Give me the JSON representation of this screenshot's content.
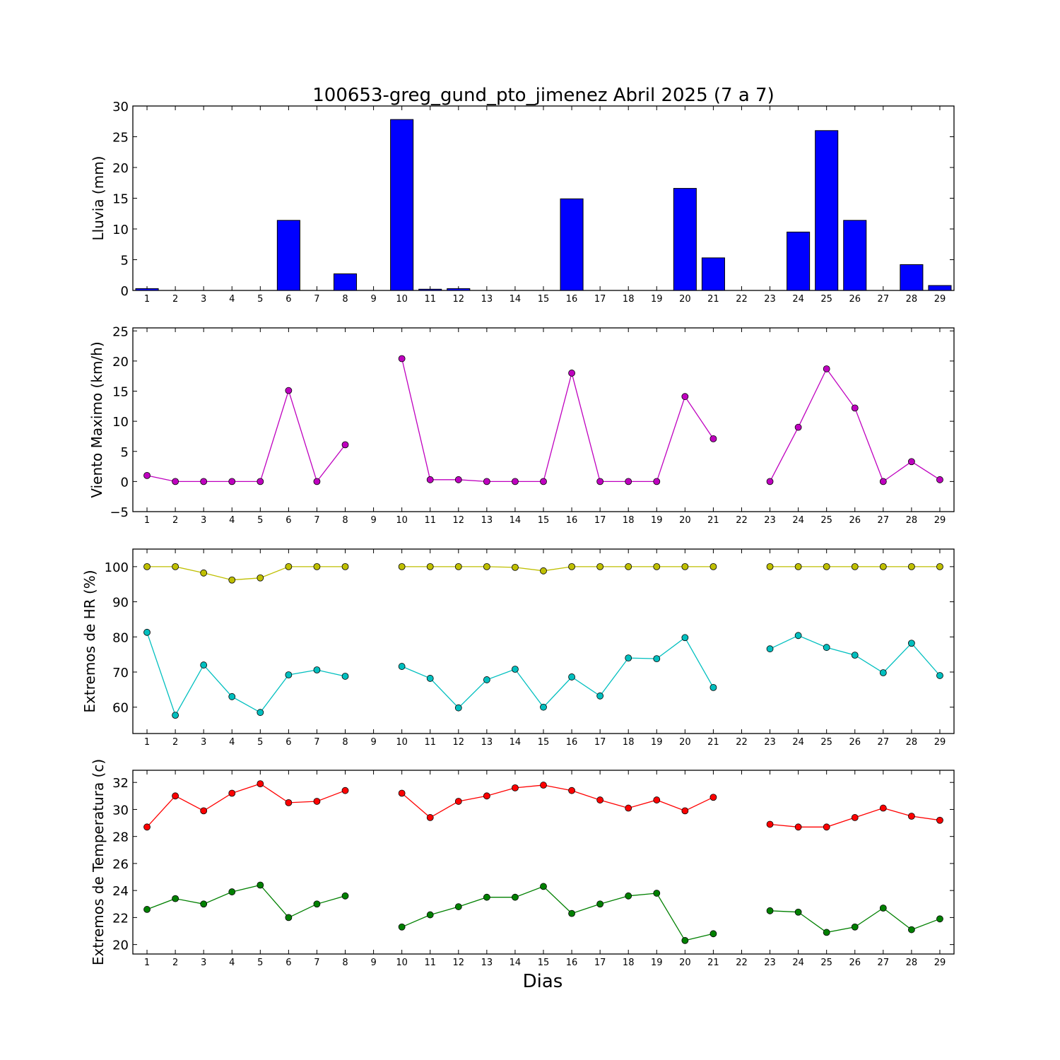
{
  "title": "100653-greg_gund_pto_jimenez Abril 2025  (7 a 7)",
  "xlabel": "Dias",
  "chart_data": [
    {
      "type": "bar",
      "ylabel": "Lluvia (mm)",
      "ylim": [
        0,
        30
      ],
      "yticks": [
        0,
        5,
        10,
        15,
        20,
        25,
        30
      ],
      "color": "#0000ff",
      "categories": [
        1,
        2,
        3,
        4,
        5,
        6,
        7,
        8,
        9,
        10,
        11,
        12,
        13,
        14,
        15,
        16,
        17,
        18,
        19,
        20,
        21,
        22,
        23,
        24,
        25,
        26,
        27,
        28,
        29
      ],
      "values": [
        0.3,
        0,
        0,
        0,
        0,
        11.4,
        0,
        2.7,
        0,
        27.8,
        0.2,
        0.3,
        0,
        0,
        0,
        14.9,
        0,
        0,
        0,
        16.6,
        5.3,
        0,
        0,
        9.5,
        26.0,
        11.4,
        0,
        4.2,
        0.8
      ]
    },
    {
      "type": "line",
      "ylabel": "Viento Maximo (km/h)",
      "ylim": [
        -5,
        25.5
      ],
      "yticks": [
        -5,
        0,
        5,
        10,
        15,
        20,
        25
      ],
      "series": [
        {
          "color": "#bf00bf",
          "values": [
            1.0,
            0,
            0,
            0,
            0,
            15.1,
            0,
            6.1,
            null,
            20.4,
            0.3,
            0.3,
            0,
            0,
            0,
            18.0,
            0,
            0,
            0,
            14.1,
            7.1,
            null,
            0,
            9.0,
            18.7,
            12.2,
            0,
            3.3,
            0.3
          ]
        }
      ]
    },
    {
      "type": "line",
      "ylabel": "Extremos de HR (%)",
      "ylim": [
        52.5,
        105
      ],
      "yticks": [
        60,
        70,
        80,
        90,
        100
      ],
      "series": [
        {
          "color": "#bfbf00",
          "values": [
            100,
            100,
            98.2,
            96.2,
            96.8,
            100,
            100,
            100,
            null,
            100,
            100,
            100,
            100,
            99.8,
            98.8,
            100,
            100,
            100,
            100,
            100,
            100,
            null,
            100,
            100,
            100,
            100,
            100,
            100,
            100
          ]
        },
        {
          "color": "#00bfbf",
          "values": [
            81.3,
            57.7,
            72.0,
            63.0,
            58.5,
            69.2,
            70.6,
            68.8,
            null,
            71.6,
            68.2,
            59.8,
            67.8,
            70.8,
            60.0,
            68.6,
            63.2,
            74.0,
            73.8,
            79.8,
            65.6,
            null,
            76.6,
            80.4,
            77.0,
            74.8,
            69.8,
            78.2,
            69.0
          ]
        }
      ]
    },
    {
      "type": "line",
      "ylabel": "Extremos de Temperatura (c)",
      "ylim": [
        19.3,
        32.9
      ],
      "yticks": [
        20,
        22,
        24,
        26,
        28,
        30,
        32
      ],
      "series": [
        {
          "color": "#ff0000",
          "values": [
            28.7,
            31.0,
            29.9,
            31.2,
            31.9,
            30.5,
            30.6,
            31.4,
            null,
            31.2,
            29.4,
            30.6,
            31.0,
            31.6,
            31.8,
            31.4,
            30.7,
            30.1,
            30.7,
            29.9,
            30.9,
            null,
            28.9,
            28.7,
            28.7,
            29.4,
            30.1,
            29.5,
            29.2
          ]
        },
        {
          "color": "#008000",
          "values": [
            22.6,
            23.4,
            23.0,
            23.9,
            24.4,
            22.0,
            23.0,
            23.6,
            null,
            21.3,
            22.2,
            22.8,
            23.5,
            23.5,
            24.3,
            22.3,
            23.0,
            23.6,
            23.8,
            20.3,
            20.8,
            null,
            22.5,
            22.4,
            20.9,
            21.3,
            22.7,
            21.1,
            21.9
          ]
        }
      ]
    }
  ]
}
